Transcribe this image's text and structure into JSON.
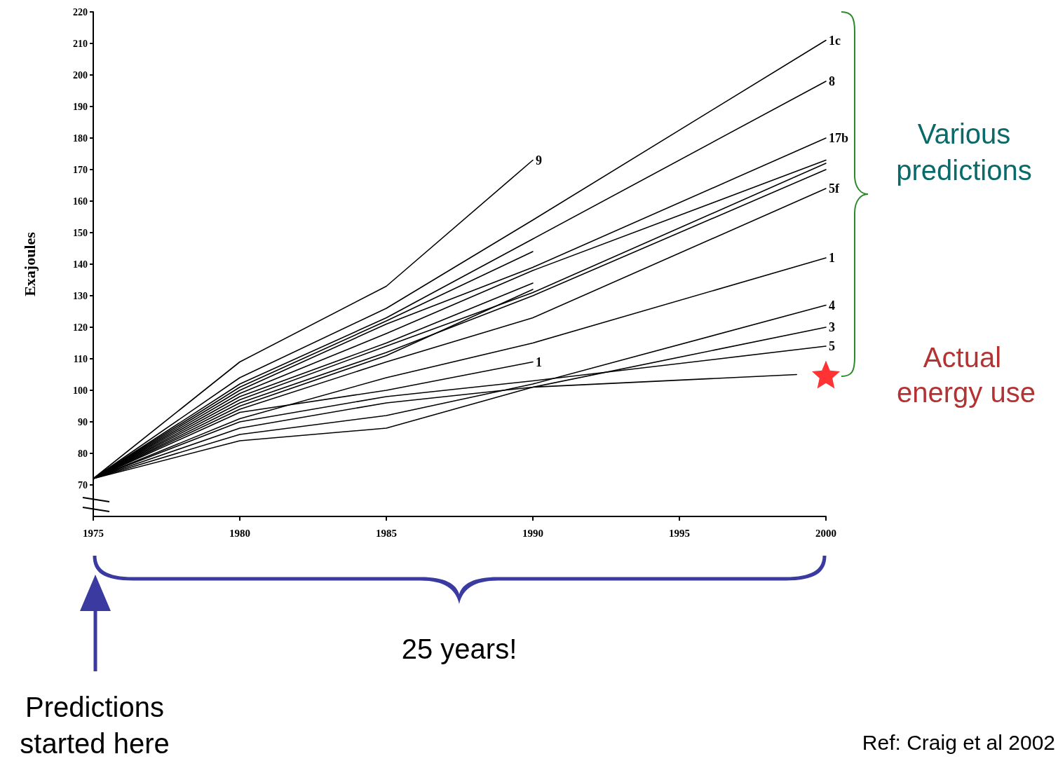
{
  "chart_data": {
    "type": "line",
    "ylabel": "Exajoules",
    "xlim": [
      1975,
      2000
    ],
    "xticks": [
      1975,
      1980,
      1985,
      1990,
      1995,
      2000
    ],
    "ylim": [
      60,
      220
    ],
    "yticks": [
      70,
      80,
      90,
      100,
      110,
      120,
      130,
      140,
      150,
      160,
      170,
      180,
      190,
      200,
      210,
      220
    ],
    "grid": false,
    "legend": false,
    "marker": "none",
    "line_style": "solid",
    "x": [
      1975,
      1980,
      1985,
      1990,
      2000
    ],
    "series": [
      {
        "name": "1c",
        "color": "#000000",
        "values": [
          72,
          104,
          126,
          154,
          211
        ]
      },
      {
        "name": "8",
        "color": "#000000",
        "values": [
          72,
          102,
          123,
          148,
          198
        ]
      },
      {
        "name": "17b",
        "color": "#000000",
        "values": [
          72,
          100,
          121,
          139,
          180
        ]
      },
      {
        "color": "#000000",
        "values": [
          72,
          99,
          118,
          138,
          173
        ]
      },
      {
        "color": "#000000",
        "values": [
          72,
          97,
          114,
          131,
          172
        ]
      },
      {
        "color": "#000000",
        "values": [
          72,
          96,
          112,
          130,
          170
        ]
      },
      {
        "name": "5f",
        "color": "#000000",
        "values": [
          72,
          94,
          109,
          123,
          164
        ]
      },
      {
        "name": "1",
        "color": "#000000",
        "values": [
          72,
          91,
          104,
          115,
          142
        ]
      },
      {
        "name": "4",
        "color": "#000000",
        "values": [
          72,
          86,
          92,
          102,
          127
        ]
      },
      {
        "name": "3",
        "color": "#000000",
        "values": [
          72,
          88,
          96,
          101,
          120
        ]
      },
      {
        "name": "5",
        "color": "#000000",
        "values": [
          72,
          90,
          98,
          103,
          114
        ]
      },
      {
        "name": "9",
        "color": "#000000",
        "x": [
          1975,
          1980,
          1985,
          1990
        ],
        "values": [
          72,
          109,
          133,
          173
        ]
      },
      {
        "name": "1",
        "color": "#000000",
        "x": [
          1975,
          1980,
          1985,
          1990
        ],
        "values": [
          72,
          93,
          100,
          109
        ]
      },
      {
        "color": "#000000",
        "x": [
          1975,
          1980,
          1985,
          1990
        ],
        "values": [
          72,
          101,
          122,
          144
        ]
      },
      {
        "color": "#000000",
        "x": [
          1975,
          1980,
          1985,
          1990
        ],
        "values": [
          72,
          98,
          115,
          134
        ]
      },
      {
        "color": "#000000",
        "x": [
          1975,
          1980,
          1985,
          1990
        ],
        "values": [
          72,
          95,
          111,
          132
        ]
      },
      {
        "color": "#000000",
        "x": [
          1975,
          1980,
          1985,
          1990,
          1999
        ],
        "values": [
          72,
          84,
          88,
          101,
          105
        ]
      },
      {
        "name": "Actual energy use",
        "type": "scatter",
        "marker": "star",
        "color": "#ff0000",
        "x": [
          2000
        ],
        "values": [
          105
        ]
      }
    ],
    "annotations": [
      "Various predictions",
      "25 years!",
      "Predictions started here",
      "Ref: Craig et al 2002"
    ]
  }
}
